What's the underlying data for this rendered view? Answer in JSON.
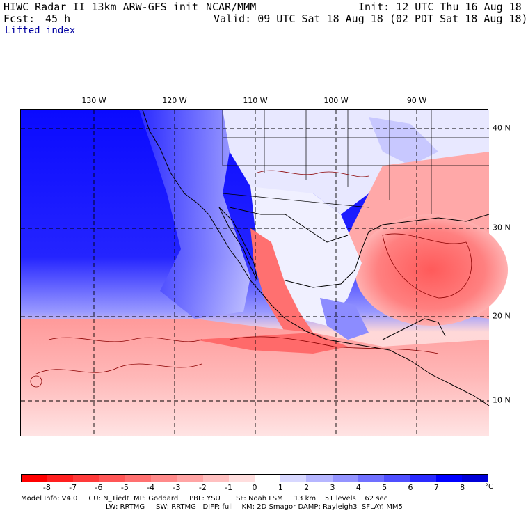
{
  "header": {
    "model_line": "HIWC Radar II 13km ARW-GFS init",
    "org": "NCAR/MMM",
    "init": "Init: 12 UTC Thu 16 Aug 18",
    "fcst_label": "Fcst:",
    "fcst_value": "45 h",
    "valid": "Valid: 09 UTC Sat 18 Aug 18 (02 PDT Sat 18 Aug 18)",
    "field": "Lifted index"
  },
  "map": {
    "lon_labels": [
      "130 W",
      "120 W",
      "110 W",
      "100 W",
      "90 W"
    ],
    "lat_labels": [
      "40 N",
      "30 N",
      "20 N",
      "10 N"
    ]
  },
  "colorbar": {
    "tick_labels": [
      "-8",
      "-7",
      "-6",
      "-5",
      "-4",
      "-3",
      "-2",
      "-1",
      "0",
      "1",
      "2",
      "3",
      "4",
      "5",
      "6",
      "7",
      "8"
    ],
    "unit": "°C",
    "colors": [
      "#ff0000",
      "#ff1f1f",
      "#ff3a3a",
      "#ff5656",
      "#ff7070",
      "#ff8a8a",
      "#ffa4a4",
      "#ffc0c0",
      "#ffdede",
      "#ffffff",
      "#d8d8ff",
      "#b6b6ff",
      "#9494ff",
      "#7070ff",
      "#4f4fff",
      "#2a2aff",
      "#0000ff",
      "#0000d8"
    ]
  },
  "footer": {
    "line1": "Model Info: V4.0     CU: N_Tiedt  MP: Goddard     PBL: YSU       SF: Noah LSM     13 km    51 levels    62 sec",
    "line2": "LW: RRTMG     SW: RRTMG   DIFF: full    KM: 2D Smagor DAMP: Rayleigh3  SFLAY: MM5"
  }
}
